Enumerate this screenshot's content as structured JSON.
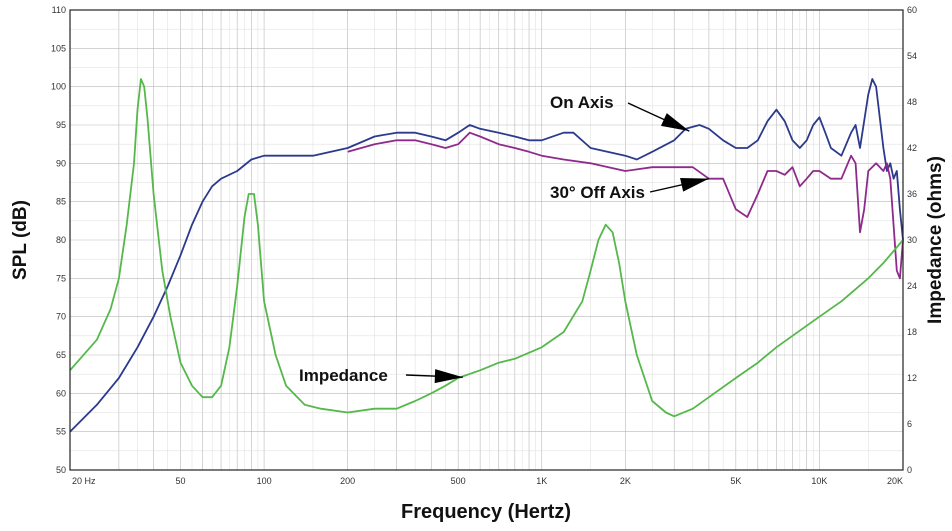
{
  "chart_data": {
    "type": "line",
    "title": "",
    "xlabel": "Frequency (Hertz)",
    "ylabel": "SPL (dB)",
    "y2label": "Impedance (ohms)",
    "x_scale": "log",
    "xlim": [
      20,
      20000
    ],
    "ylim": [
      50,
      110
    ],
    "y2lim": [
      0,
      60
    ],
    "grid": true,
    "x_tick_labels": [
      {
        "value": 20,
        "label": "20  Hz"
      },
      {
        "value": 50,
        "label": "50"
      },
      {
        "value": 100,
        "label": "100"
      },
      {
        "value": 200,
        "label": "200"
      },
      {
        "value": 500,
        "label": "500"
      },
      {
        "value": 1000,
        "label": "1K"
      },
      {
        "value": 2000,
        "label": "2K"
      },
      {
        "value": 5000,
        "label": "5K"
      },
      {
        "value": 10000,
        "label": "10K"
      },
      {
        "value": 20000,
        "label": "20K"
      }
    ],
    "y_ticks": [
      50,
      55,
      60,
      65,
      70,
      75,
      80,
      85,
      90,
      95,
      100,
      105,
      110
    ],
    "y2_ticks": [
      0,
      6,
      12,
      18,
      24,
      30,
      36,
      42,
      48,
      54,
      60
    ],
    "series": [
      {
        "name": "On Axis",
        "axis": "left",
        "color": "#2b3a8c",
        "points": [
          [
            20,
            55
          ],
          [
            25,
            58.5
          ],
          [
            30,
            62
          ],
          [
            35,
            66
          ],
          [
            40,
            70
          ],
          [
            45,
            74
          ],
          [
            50,
            78
          ],
          [
            55,
            82
          ],
          [
            60,
            85
          ],
          [
            65,
            87
          ],
          [
            70,
            88
          ],
          [
            80,
            89
          ],
          [
            90,
            90.5
          ],
          [
            100,
            91
          ],
          [
            120,
            91
          ],
          [
            150,
            91
          ],
          [
            200,
            92
          ],
          [
            250,
            93.5
          ],
          [
            300,
            94
          ],
          [
            350,
            94
          ],
          [
            400,
            93.5
          ],
          [
            450,
            93
          ],
          [
            500,
            94
          ],
          [
            550,
            95
          ],
          [
            600,
            94.5
          ],
          [
            700,
            94
          ],
          [
            800,
            93.5
          ],
          [
            900,
            93
          ],
          [
            1000,
            93
          ],
          [
            1200,
            94
          ],
          [
            1300,
            94
          ],
          [
            1500,
            92
          ],
          [
            2000,
            91
          ],
          [
            2200,
            90.5
          ],
          [
            2500,
            91.5
          ],
          [
            3000,
            93
          ],
          [
            3300,
            94.5
          ],
          [
            3700,
            95
          ],
          [
            4000,
            94.5
          ],
          [
            4500,
            93
          ],
          [
            5000,
            92
          ],
          [
            5500,
            92
          ],
          [
            6000,
            93
          ],
          [
            6500,
            95.5
          ],
          [
            7000,
            97
          ],
          [
            7500,
            95.5
          ],
          [
            8000,
            93
          ],
          [
            8500,
            92
          ],
          [
            9000,
            93
          ],
          [
            9500,
            95
          ],
          [
            10000,
            96
          ],
          [
            10500,
            94
          ],
          [
            11000,
            92
          ],
          [
            12000,
            91
          ],
          [
            13000,
            94
          ],
          [
            13500,
            95
          ],
          [
            14000,
            92
          ],
          [
            15000,
            99
          ],
          [
            15500,
            101
          ],
          [
            16000,
            100
          ],
          [
            17000,
            92
          ],
          [
            17500,
            89
          ],
          [
            18000,
            90
          ],
          [
            18500,
            88
          ],
          [
            19000,
            89
          ],
          [
            19500,
            84
          ],
          [
            20000,
            80
          ]
        ]
      },
      {
        "name": "30° Off Axis",
        "axis": "left",
        "color": "#8e2a8c",
        "points": [
          [
            200,
            91.5
          ],
          [
            250,
            92.5
          ],
          [
            300,
            93
          ],
          [
            350,
            93
          ],
          [
            400,
            92.5
          ],
          [
            450,
            92
          ],
          [
            500,
            92.5
          ],
          [
            550,
            94
          ],
          [
            600,
            93.5
          ],
          [
            700,
            92.5
          ],
          [
            800,
            92
          ],
          [
            900,
            91.5
          ],
          [
            1000,
            91
          ],
          [
            1200,
            90.5
          ],
          [
            1500,
            90
          ],
          [
            2000,
            89
          ],
          [
            2500,
            89.5
          ],
          [
            3000,
            89.5
          ],
          [
            3500,
            89.5
          ],
          [
            4000,
            88
          ],
          [
            4500,
            88
          ],
          [
            5000,
            84
          ],
          [
            5500,
            83
          ],
          [
            6000,
            86
          ],
          [
            6500,
            89
          ],
          [
            7000,
            89
          ],
          [
            7500,
            88.5
          ],
          [
            8000,
            89.5
          ],
          [
            8500,
            87
          ],
          [
            9000,
            88
          ],
          [
            9500,
            89
          ],
          [
            10000,
            89
          ],
          [
            11000,
            88
          ],
          [
            12000,
            88
          ],
          [
            13000,
            91
          ],
          [
            13500,
            90
          ],
          [
            14000,
            81
          ],
          [
            14500,
            84
          ],
          [
            15000,
            89
          ],
          [
            16000,
            90
          ],
          [
            17000,
            89
          ],
          [
            17500,
            90
          ],
          [
            18000,
            88
          ],
          [
            19000,
            76
          ],
          [
            19500,
            75
          ],
          [
            20000,
            80
          ]
        ]
      },
      {
        "name": "Impedance",
        "axis": "right",
        "color": "#55b84a",
        "points": [
          [
            20,
            13
          ],
          [
            25,
            17
          ],
          [
            28,
            21
          ],
          [
            30,
            25
          ],
          [
            32,
            32
          ],
          [
            34,
            40
          ],
          [
            35,
            47
          ],
          [
            36,
            51
          ],
          [
            37,
            50
          ],
          [
            38,
            46
          ],
          [
            40,
            36
          ],
          [
            43,
            26
          ],
          [
            46,
            20
          ],
          [
            50,
            14
          ],
          [
            55,
            11
          ],
          [
            60,
            9.5
          ],
          [
            65,
            9.5
          ],
          [
            70,
            11
          ],
          [
            75,
            16
          ],
          [
            80,
            24
          ],
          [
            85,
            33
          ],
          [
            88,
            36
          ],
          [
            92,
            36
          ],
          [
            95,
            32
          ],
          [
            100,
            22
          ],
          [
            110,
            15
          ],
          [
            120,
            11
          ],
          [
            140,
            8.5
          ],
          [
            160,
            8
          ],
          [
            200,
            7.5
          ],
          [
            250,
            8
          ],
          [
            300,
            8
          ],
          [
            350,
            9
          ],
          [
            400,
            10
          ],
          [
            450,
            11
          ],
          [
            500,
            12
          ],
          [
            600,
            13
          ],
          [
            700,
            14
          ],
          [
            800,
            14.5
          ],
          [
            1000,
            16
          ],
          [
            1200,
            18
          ],
          [
            1400,
            22
          ],
          [
            1500,
            26
          ],
          [
            1600,
            30
          ],
          [
            1700,
            32
          ],
          [
            1800,
            31
          ],
          [
            1900,
            27
          ],
          [
            2000,
            22
          ],
          [
            2200,
            15
          ],
          [
            2500,
            9
          ],
          [
            2800,
            7.5
          ],
          [
            3000,
            7
          ],
          [
            3500,
            8
          ],
          [
            4000,
            9.5
          ],
          [
            5000,
            12
          ],
          [
            6000,
            14
          ],
          [
            7000,
            16
          ],
          [
            8000,
            17.5
          ],
          [
            10000,
            20
          ],
          [
            12000,
            22
          ],
          [
            15000,
            25
          ],
          [
            17000,
            27
          ],
          [
            20000,
            30
          ]
        ]
      }
    ],
    "annotations": [
      {
        "text": "On Axis",
        "arrow_to": [
          3400,
          94.2
        ]
      },
      {
        "text": "30° Off Axis",
        "arrow_to": [
          4000,
          88
        ]
      },
      {
        "text": "Impedance",
        "arrow_to": [
          520,
          12.1
        ],
        "axis": "right"
      }
    ]
  }
}
